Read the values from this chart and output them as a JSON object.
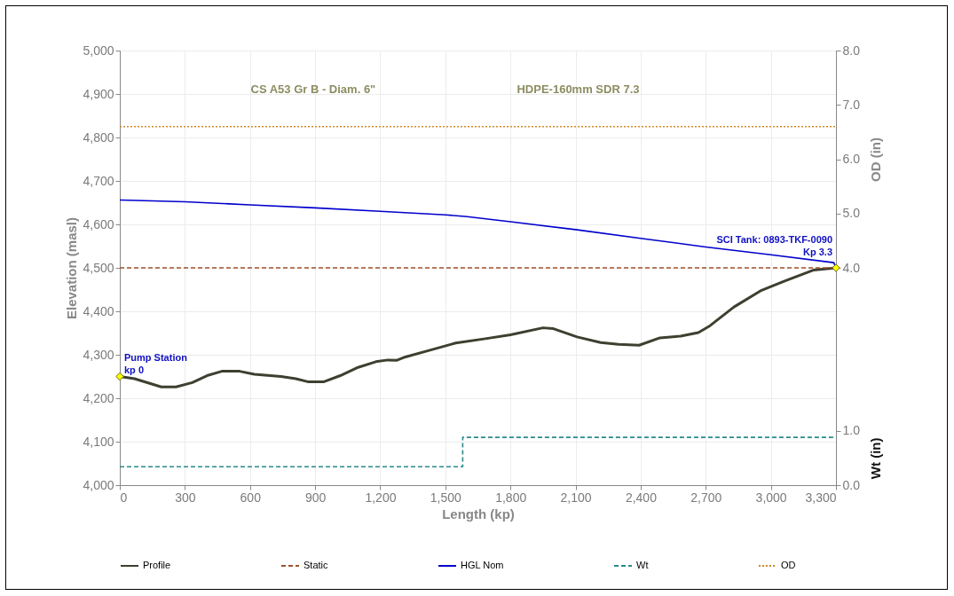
{
  "chart_data": {
    "type": "line",
    "xlabel": "Length (kp)",
    "ylabel": "Elevation (masl)",
    "y2label": "OD (in)",
    "y3label": "Wt (in)",
    "xlim": [
      0,
      3300
    ],
    "xticks": [
      0,
      300,
      600,
      900,
      {
        "value": 1200,
        "label": "1,200"
      },
      {
        "value": 1500,
        "label": "1,500"
      },
      {
        "value": 1800,
        "label": "1,800"
      },
      {
        "value": 2100,
        "label": "2,100"
      },
      {
        "value": 2400,
        "label": "2,400"
      },
      {
        "value": 2700,
        "label": "2,700"
      },
      {
        "value": 3000,
        "label": "3,000"
      },
      {
        "value": 3300,
        "label": "3,300"
      }
    ],
    "ylim": [
      4000,
      5000
    ],
    "yticks": [
      {
        "value": 4000,
        "label": "4,000"
      },
      {
        "value": 4100,
        "label": "4,100"
      },
      {
        "value": 4200,
        "label": "4,200"
      },
      {
        "value": 4300,
        "label": "4,300"
      },
      {
        "value": 4400,
        "label": "4,400"
      },
      {
        "value": 4500,
        "label": "4,500"
      },
      {
        "value": 4600,
        "label": "4,600"
      },
      {
        "value": 4700,
        "label": "4,700"
      },
      {
        "value": 4800,
        "label": "4,800"
      },
      {
        "value": 4900,
        "label": "4,900"
      },
      {
        "value": 5000,
        "label": "5,000"
      }
    ],
    "y2lim": [
      0,
      8
    ],
    "y2ticks": [
      {
        "value": 4,
        "label": "4.0"
      },
      {
        "value": 5,
        "label": "5.0"
      },
      {
        "value": 6,
        "label": "6.0"
      },
      {
        "value": 7,
        "label": "7.0"
      },
      {
        "value": 8,
        "label": "8.0"
      }
    ],
    "y3lim": [
      0,
      8
    ],
    "y3ticks": [
      {
        "value": 0,
        "label": "0.0"
      },
      {
        "value": 1,
        "label": "1.0"
      }
    ],
    "grid": true,
    "legend": "bottom",
    "series": [
      {
        "name": "Profile",
        "color": "#3f3f30",
        "line_style": "solid",
        "x": [
          0,
          68,
          191,
          259,
          334,
          402,
          470,
          552,
          620,
          743,
          811,
          866,
          941,
          1016,
          1098,
          1180,
          1235,
          1275,
          1316,
          1425,
          1548,
          1685,
          1800,
          1950,
          1998,
          2107,
          2216,
          2298,
          2393,
          2489,
          2584,
          2666,
          2720,
          2830,
          2952,
          3061,
          3198,
          3300
        ],
        "values": [
          4250,
          4245,
          4226,
          4226,
          4236,
          4252,
          4262,
          4262,
          4255,
          4250,
          4245,
          4238,
          4238,
          4252,
          4271,
          4284,
          4288,
          4287,
          4295,
          4310,
          4327,
          4337,
          4346,
          4362,
          4360,
          4341,
          4328,
          4324,
          4322,
          4339,
          4343,
          4351,
          4367,
          4410,
          4447,
          4469,
          4495,
          4500
        ]
      },
      {
        "name": "Static",
        "color": "#a0522d",
        "line_style": "dashed",
        "x": [
          0,
          3300
        ],
        "values": [
          4500,
          4500
        ]
      },
      {
        "name": "HGL Nom",
        "color": "#0000cc",
        "line_style": "solid",
        "x": [
          0,
          300,
          600,
          900,
          1200,
          1500,
          1600,
          1800,
          2100,
          2400,
          2700,
          3000,
          3290,
          3300
        ],
        "values": [
          4656,
          4652,
          4645,
          4638,
          4630,
          4622,
          4618,
          4606,
          4588,
          4568,
          4548,
          4530,
          4512,
          4500
        ]
      },
      {
        "name": "Wt",
        "type": "step",
        "axis": "y3",
        "color": "#2a8a8a",
        "line_style": "dashed",
        "x": [
          0,
          1580,
          3300
        ],
        "values": [
          0.34,
          0.88,
          0.88
        ]
      },
      {
        "name": "OD",
        "axis": "y2",
        "color": "#d08a2a",
        "line_style": "dotted",
        "x": [
          0,
          3300
        ],
        "values": [
          6.6,
          6.6
        ]
      }
    ],
    "annotations": [
      "CS A53 Gr B - Diam. 6\"",
      "HDPE-160mm SDR 7.3",
      {
        "text": "Pump Station\nkp 0",
        "x": 0,
        "y": 4250
      },
      {
        "text": "SCI Tank: 0893-TKF-0090\nKp 3.3",
        "x": 3300,
        "y": 4500
      }
    ]
  }
}
